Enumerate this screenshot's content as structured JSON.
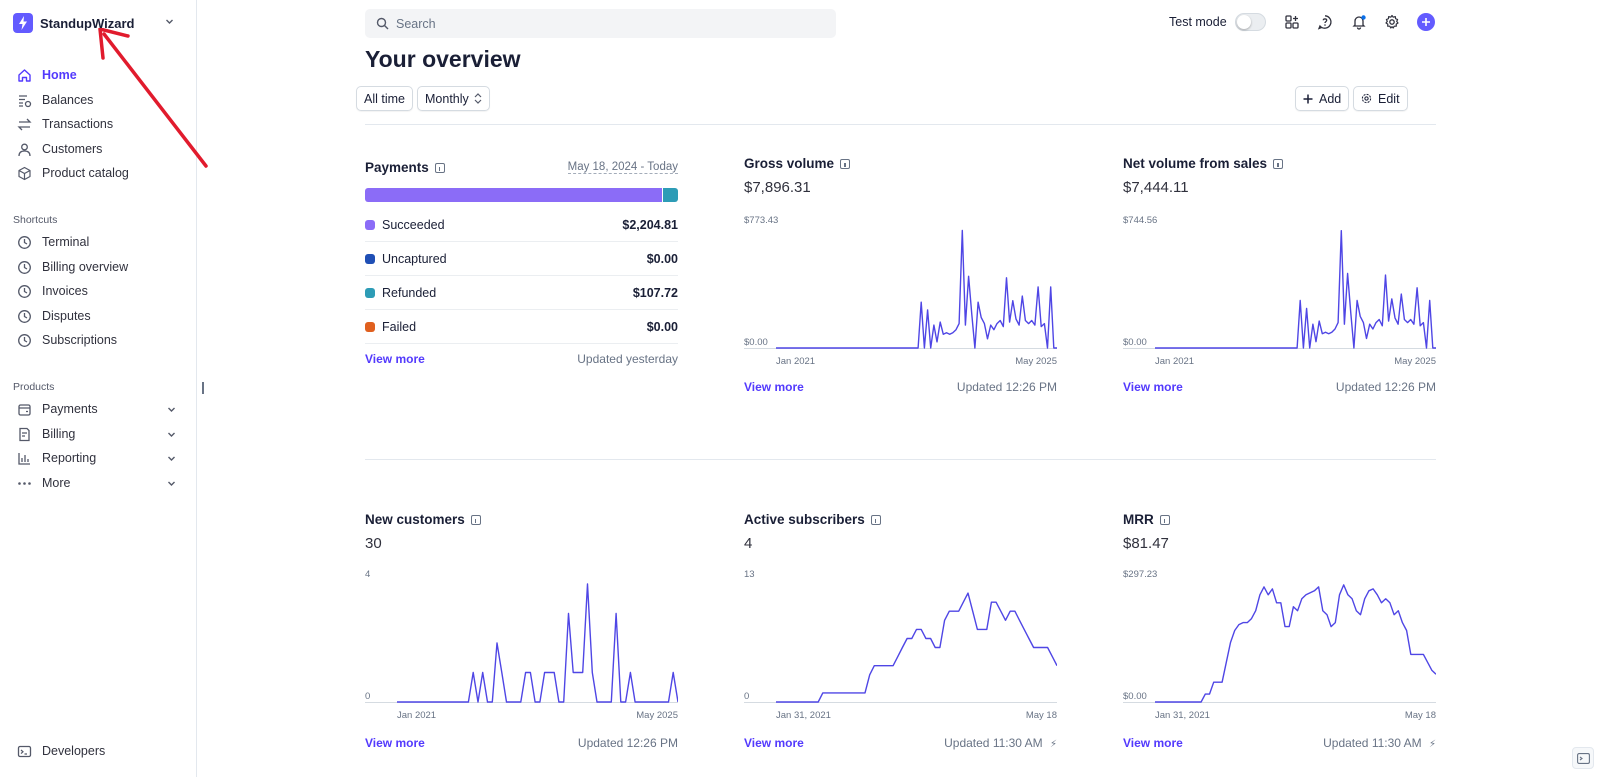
{
  "brand": {
    "name": "StandupWizard",
    "accent": "#635bff"
  },
  "sidebar": {
    "main_items": [
      {
        "label": "Home",
        "icon": "home-icon",
        "active": true
      },
      {
        "label": "Balances",
        "icon": "balances-icon"
      },
      {
        "label": "Transactions",
        "icon": "transactions-icon"
      },
      {
        "label": "Customers",
        "icon": "customers-icon"
      },
      {
        "label": "Product catalog",
        "icon": "product-catalog-icon"
      }
    ],
    "shortcuts_label": "Shortcuts",
    "shortcuts": [
      {
        "label": "Terminal"
      },
      {
        "label": "Billing overview"
      },
      {
        "label": "Invoices"
      },
      {
        "label": "Disputes"
      },
      {
        "label": "Subscriptions"
      }
    ],
    "products_label": "Products",
    "products": [
      {
        "label": "Payments",
        "icon": "payments-icon"
      },
      {
        "label": "Billing",
        "icon": "billing-icon"
      },
      {
        "label": "Reporting",
        "icon": "reporting-icon"
      },
      {
        "label": "More",
        "icon": "more-icon"
      }
    ],
    "developers_label": "Developers"
  },
  "header": {
    "search_placeholder": "Search",
    "test_mode_label": "Test mode"
  },
  "overview": {
    "title": "Your overview",
    "filter_range": "All time",
    "filter_interval": "Monthly",
    "add_label": "Add",
    "edit_label": "Edit"
  },
  "payments_card": {
    "title": "Payments",
    "date_range": "May 18, 2024 - Today",
    "bar_fractions": {
      "succeeded": 0.953,
      "refunded": 0.047
    },
    "rows": [
      {
        "label": "Succeeded",
        "amount": "$2,204.81",
        "color": "#8b6cf7"
      },
      {
        "label": "Uncaptured",
        "amount": "$0.00",
        "color": "#1f4fb5"
      },
      {
        "label": "Refunded",
        "amount": "$107.72",
        "color": "#2d9cb6"
      },
      {
        "label": "Failed",
        "amount": "$0.00",
        "color": "#e0601f"
      }
    ],
    "view_more": "View more",
    "updated": "Updated yesterday"
  },
  "cards": [
    {
      "title": "Gross volume",
      "value": "$7,896.31",
      "ymax": "$773.43",
      "ymin": "$0.00",
      "xstart": "Jan 2021",
      "xend": "May 2025",
      "view_more": "View more",
      "updated": "Updated 12:26 PM"
    },
    {
      "title": "Net volume from sales",
      "value": "$7,444.11",
      "ymax": "$744.56",
      "ymin": "$0.00",
      "xstart": "Jan 2021",
      "xend": "May 2025",
      "view_more": "View more",
      "updated": "Updated 12:26 PM"
    },
    {
      "title": "New customers",
      "value": "30",
      "ymax": "4",
      "ymin": "0",
      "xstart": "Jan 2021",
      "xend": "May 2025",
      "view_more": "View more",
      "updated": "Updated 12:26 PM"
    },
    {
      "title": "Active subscribers",
      "value": "4",
      "ymax": "13",
      "ymin": "0",
      "xstart": "Jan 31, 2021",
      "xend": "May 18",
      "view_more": "View more",
      "updated": "Updated 11:30 AM"
    },
    {
      "title": "MRR",
      "value": "$81.47",
      "ymax": "$297.23",
      "ymin": "$0.00",
      "xstart": "Jan 31, 2021",
      "xend": "May 18",
      "view_more": "View more",
      "updated": "Updated 11:30 AM"
    }
  ],
  "chart_data": [
    {
      "type": "line",
      "title": "Gross volume",
      "ylim": [
        0,
        773.43
      ],
      "values": [
        0,
        0,
        0,
        0,
        0,
        0,
        0,
        0,
        0,
        0,
        0,
        0,
        0,
        0,
        0,
        0,
        0,
        0,
        0,
        0,
        0,
        0,
        0,
        0,
        0,
        0,
        0,
        0,
        0,
        0,
        0,
        0,
        0,
        0,
        0,
        0,
        0,
        0,
        0,
        0,
        0,
        0,
        0,
        0,
        0,
        0,
        300,
        0,
        250,
        0,
        150,
        40,
        170,
        90,
        100,
        90,
        100,
        120,
        160,
        770,
        150,
        470,
        220,
        0,
        300,
        200,
        160,
        60,
        150,
        120,
        160,
        180,
        140,
        460,
        170,
        310,
        190,
        150,
        340,
        180,
        160,
        180,
        150,
        400,
        140,
        160,
        0,
        400,
        0,
        0
      ]
    },
    {
      "type": "line",
      "title": "Net volume from sales",
      "ylim": [
        0,
        744.56
      ],
      "values": [
        0,
        0,
        0,
        0,
        0,
        0,
        0,
        0,
        0,
        0,
        0,
        0,
        0,
        0,
        0,
        0,
        0,
        0,
        0,
        0,
        0,
        0,
        0,
        0,
        0,
        0,
        0,
        0,
        0,
        0,
        0,
        0,
        0,
        0,
        0,
        0,
        0,
        0,
        0,
        0,
        0,
        0,
        0,
        0,
        0,
        0,
        300,
        0,
        250,
        0,
        150,
        40,
        170,
        90,
        100,
        90,
        100,
        120,
        160,
        740,
        150,
        470,
        220,
        0,
        300,
        200,
        160,
        60,
        150,
        120,
        160,
        180,
        140,
        460,
        170,
        310,
        190,
        150,
        340,
        180,
        160,
        180,
        150,
        380,
        140,
        160,
        0,
        300,
        0,
        0
      ]
    },
    {
      "type": "line",
      "title": "New customers",
      "ylim": [
        0,
        4
      ],
      "values": [
        0,
        0,
        0,
        0,
        0,
        0,
        0,
        0,
        0,
        0,
        0,
        0,
        0,
        0,
        0,
        0,
        1,
        0,
        1,
        0,
        0,
        2,
        1,
        0,
        0,
        0,
        0,
        1,
        1,
        0,
        0,
        1,
        1,
        1,
        0,
        0,
        3,
        1,
        1,
        1,
        4,
        1,
        0,
        0,
        0,
        0,
        3,
        0,
        0,
        1,
        0,
        0,
        0,
        0,
        0,
        0,
        0,
        0,
        1,
        0
      ]
    },
    {
      "type": "line",
      "title": "Active subscribers",
      "ylim": [
        0,
        13
      ],
      "values": [
        0,
        0,
        0,
        0,
        0,
        0,
        0,
        0,
        0,
        0,
        1,
        1,
        1,
        1,
        1,
        1,
        1,
        1,
        1,
        1,
        3,
        4,
        4,
        4,
        4,
        4,
        5,
        6,
        7,
        7,
        8,
        8,
        7,
        7,
        6,
        6,
        9,
        10,
        10,
        10,
        11,
        12,
        10,
        8,
        8,
        8,
        11,
        11,
        10,
        9,
        10,
        10,
        9,
        8,
        7,
        6,
        6,
        6,
        6,
        5,
        4
      ]
    },
    {
      "type": "line",
      "title": "MRR",
      "ylim": [
        0,
        297.23
      ],
      "values": [
        0,
        0,
        0,
        0,
        0,
        0,
        0,
        0,
        0,
        0,
        0,
        0,
        20,
        20,
        50,
        50,
        50,
        100,
        150,
        180,
        195,
        200,
        200,
        210,
        230,
        270,
        290,
        270,
        285,
        250,
        250,
        190,
        190,
        240,
        230,
        260,
        270,
        275,
        280,
        290,
        230,
        220,
        190,
        200,
        270,
        295,
        270,
        260,
        230,
        220,
        260,
        280,
        285,
        270,
        250,
        260,
        250,
        220,
        230,
        200,
        180,
        120,
        120,
        120,
        120,
        100,
        80,
        70
      ]
    }
  ]
}
